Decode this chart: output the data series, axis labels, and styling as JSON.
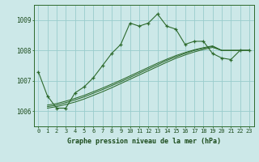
{
  "title": "Graphe pression niveau de la mer (hPa)",
  "bg_color": "#cce8e8",
  "grid_color": "#99cccc",
  "line_color": "#2d6a2d",
  "x_labels": [
    "0",
    "1",
    "2",
    "3",
    "4",
    "5",
    "6",
    "7",
    "8",
    "9",
    "10",
    "11",
    "12",
    "13",
    "14",
    "15",
    "16",
    "17",
    "18",
    "19",
    "20",
    "21",
    "22",
    "23"
  ],
  "ylim": [
    1005.5,
    1009.5
  ],
  "yticks": [
    1006,
    1007,
    1008,
    1009
  ],
  "main_series": [
    1007.3,
    1006.5,
    1006.1,
    1006.1,
    1006.6,
    1006.8,
    1007.1,
    1007.5,
    1007.9,
    1008.2,
    1008.9,
    1008.8,
    1008.9,
    1009.2,
    1008.8,
    1008.7,
    1008.2,
    1008.3,
    1008.3,
    1007.9,
    1007.75,
    1007.7,
    1008.0,
    1008.0
  ],
  "flat_series_1": [
    1006.05,
    1006.1,
    1006.15,
    1006.22,
    1006.3,
    1006.4,
    1006.52,
    1006.64,
    1006.77,
    1006.91,
    1007.05,
    1007.19,
    1007.33,
    1007.47,
    1007.61,
    1007.74,
    1007.85,
    1007.95,
    1008.03,
    1008.1,
    1008.0,
    1008.0,
    1008.0,
    1008.0
  ],
  "flat_series_2": [
    1006.1,
    1006.15,
    1006.2,
    1006.28,
    1006.37,
    1006.47,
    1006.59,
    1006.71,
    1006.84,
    1006.97,
    1007.11,
    1007.25,
    1007.39,
    1007.53,
    1007.67,
    1007.79,
    1007.9,
    1008.0,
    1008.07,
    1008.13,
    1008.0,
    1008.0,
    1008.0,
    1008.0
  ],
  "flat_series_3": [
    1006.15,
    1006.2,
    1006.25,
    1006.33,
    1006.42,
    1006.52,
    1006.64,
    1006.76,
    1006.89,
    1007.02,
    1007.16,
    1007.3,
    1007.44,
    1007.58,
    1007.71,
    1007.83,
    1007.93,
    1008.02,
    1008.09,
    1008.15,
    1008.0,
    1008.0,
    1008.0,
    1008.0
  ],
  "title_fontsize": 6.0,
  "tick_fontsize": 5.5
}
